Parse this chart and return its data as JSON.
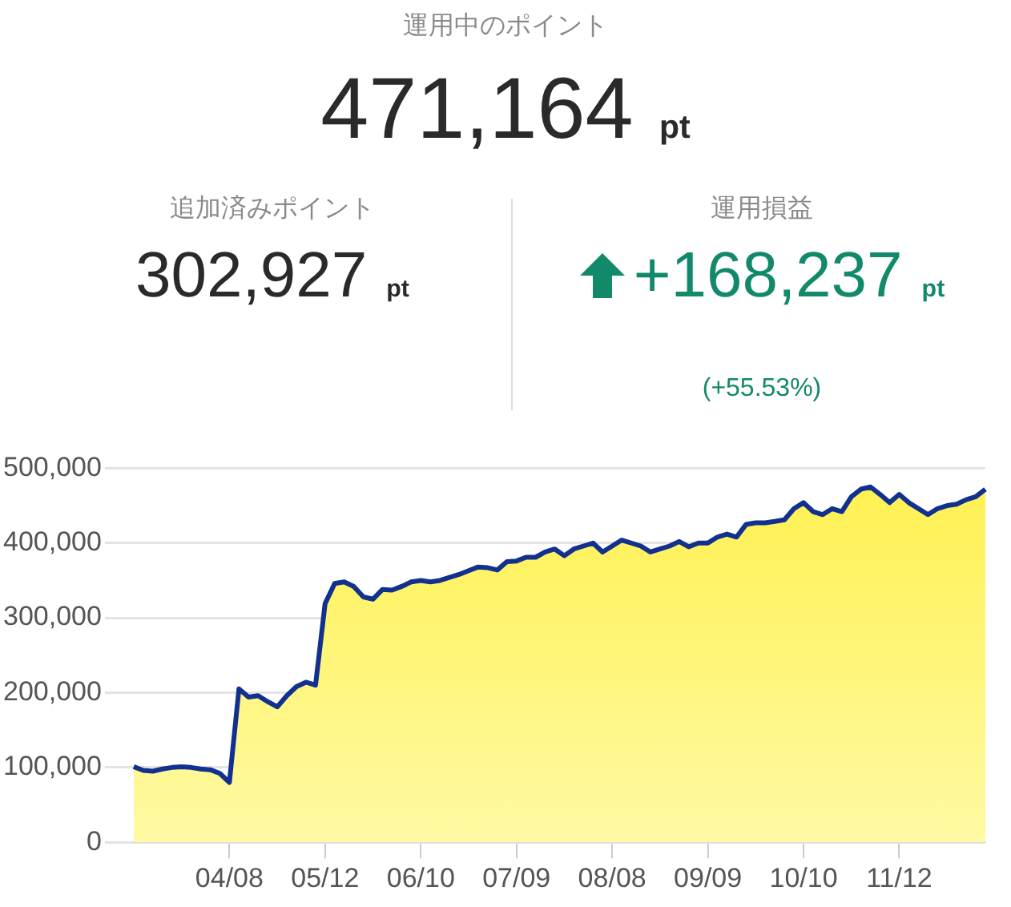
{
  "chart_data": [
    {
      "type": "other",
      "title": "運用中のポイント",
      "annotations": [
        "471,164 pt",
        "追加済みポイント",
        "302,927 pt",
        "運用損益",
        "+168,237 pt",
        "(+55.53%)"
      ]
    },
    {
      "type": "area",
      "categories": [
        null,
        null,
        null,
        null,
        null,
        null,
        null,
        null,
        null,
        null,
        "04/08",
        null,
        null,
        null,
        null,
        null,
        null,
        null,
        null,
        null,
        "05/12",
        null,
        null,
        null,
        null,
        null,
        null,
        null,
        null,
        null,
        "06/10",
        null,
        null,
        null,
        null,
        null,
        null,
        null,
        null,
        null,
        "07/09",
        null,
        null,
        null,
        null,
        null,
        null,
        null,
        null,
        null,
        "08/08",
        null,
        null,
        null,
        null,
        null,
        null,
        null,
        null,
        null,
        "09/09",
        null,
        null,
        null,
        null,
        null,
        null,
        null,
        null,
        null,
        "10/10",
        null,
        null,
        null,
        null,
        null,
        null,
        null,
        null,
        null,
        "11/12",
        null,
        null,
        null,
        null,
        null,
        null,
        null,
        null,
        null
      ],
      "series": [
        {
          "color": "#12318f",
          "values": [
            101000,
            96000,
            95000,
            98000,
            100000,
            101000,
            100000,
            98000,
            97000,
            92000,
            80000,
            205000,
            194000,
            196000,
            188000,
            181000,
            196000,
            208000,
            214000,
            210000,
            319000,
            346000,
            348000,
            342000,
            328000,
            325000,
            338000,
            337000,
            342000,
            348000,
            350000,
            348000,
            350000,
            354000,
            358000,
            363000,
            368000,
            367000,
            364000,
            375000,
            376000,
            381000,
            381000,
            388000,
            392000,
            383000,
            392000,
            396000,
            400000,
            388000,
            396000,
            404000,
            400000,
            396000,
            388000,
            392000,
            396000,
            402000,
            395000,
            400000,
            400000,
            408000,
            412000,
            408000,
            425000,
            427000,
            427000,
            429000,
            431000,
            446000,
            454000,
            442000,
            438000,
            446000,
            442000,
            462000,
            472000,
            475000,
            465000,
            454000,
            465000,
            454000,
            446000,
            438000,
            446000,
            450000,
            452000,
            458000,
            462000,
            472000
          ]
        }
      ],
      "ylim": [
        0,
        500000
      ],
      "yticks": [
        0,
        {
          "value": 100000,
          "label": "100,000"
        },
        {
          "value": 200000,
          "label": "200,000"
        },
        {
          "value": 300000,
          "label": "300,000"
        },
        {
          "value": 400000,
          "label": "400,000"
        },
        {
          "value": 500000,
          "label": "500,000"
        }
      ],
      "grid": "y",
      "legend": false,
      "marker": "none"
    }
  ]
}
